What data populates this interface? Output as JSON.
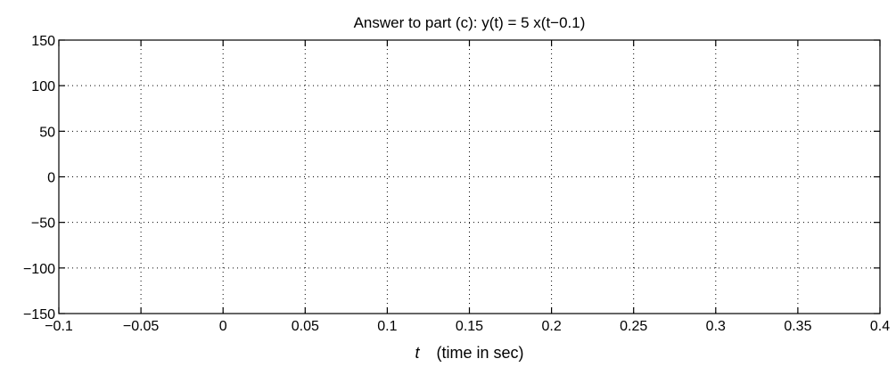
{
  "chart_data": {
    "type": "line",
    "title": "Answer to part (c): y(t) = 5 x(t−0.1)",
    "xlabel_var": "t",
    "xlabel_text": "(time in sec)",
    "ylabel": "",
    "xlim": [
      -0.1,
      0.4
    ],
    "ylim": [
      -150,
      150
    ],
    "xticks": [
      -0.1,
      -0.05,
      0,
      0.05,
      0.1,
      0.15,
      0.2,
      0.25,
      0.3,
      0.35,
      0.4
    ],
    "xtick_labels": [
      "−0.1",
      "−0.05",
      "0",
      "0.05",
      "0.1",
      "0.15",
      "0.2",
      "0.25",
      "0.3",
      "0.35",
      "0.4"
    ],
    "yticks": [
      -150,
      -100,
      -50,
      0,
      50,
      100,
      150
    ],
    "ytick_labels": [
      "−150",
      "−100",
      "−50",
      "0",
      "50",
      "100",
      "150"
    ],
    "grid": true,
    "grid_style": "dotted",
    "series": []
  }
}
